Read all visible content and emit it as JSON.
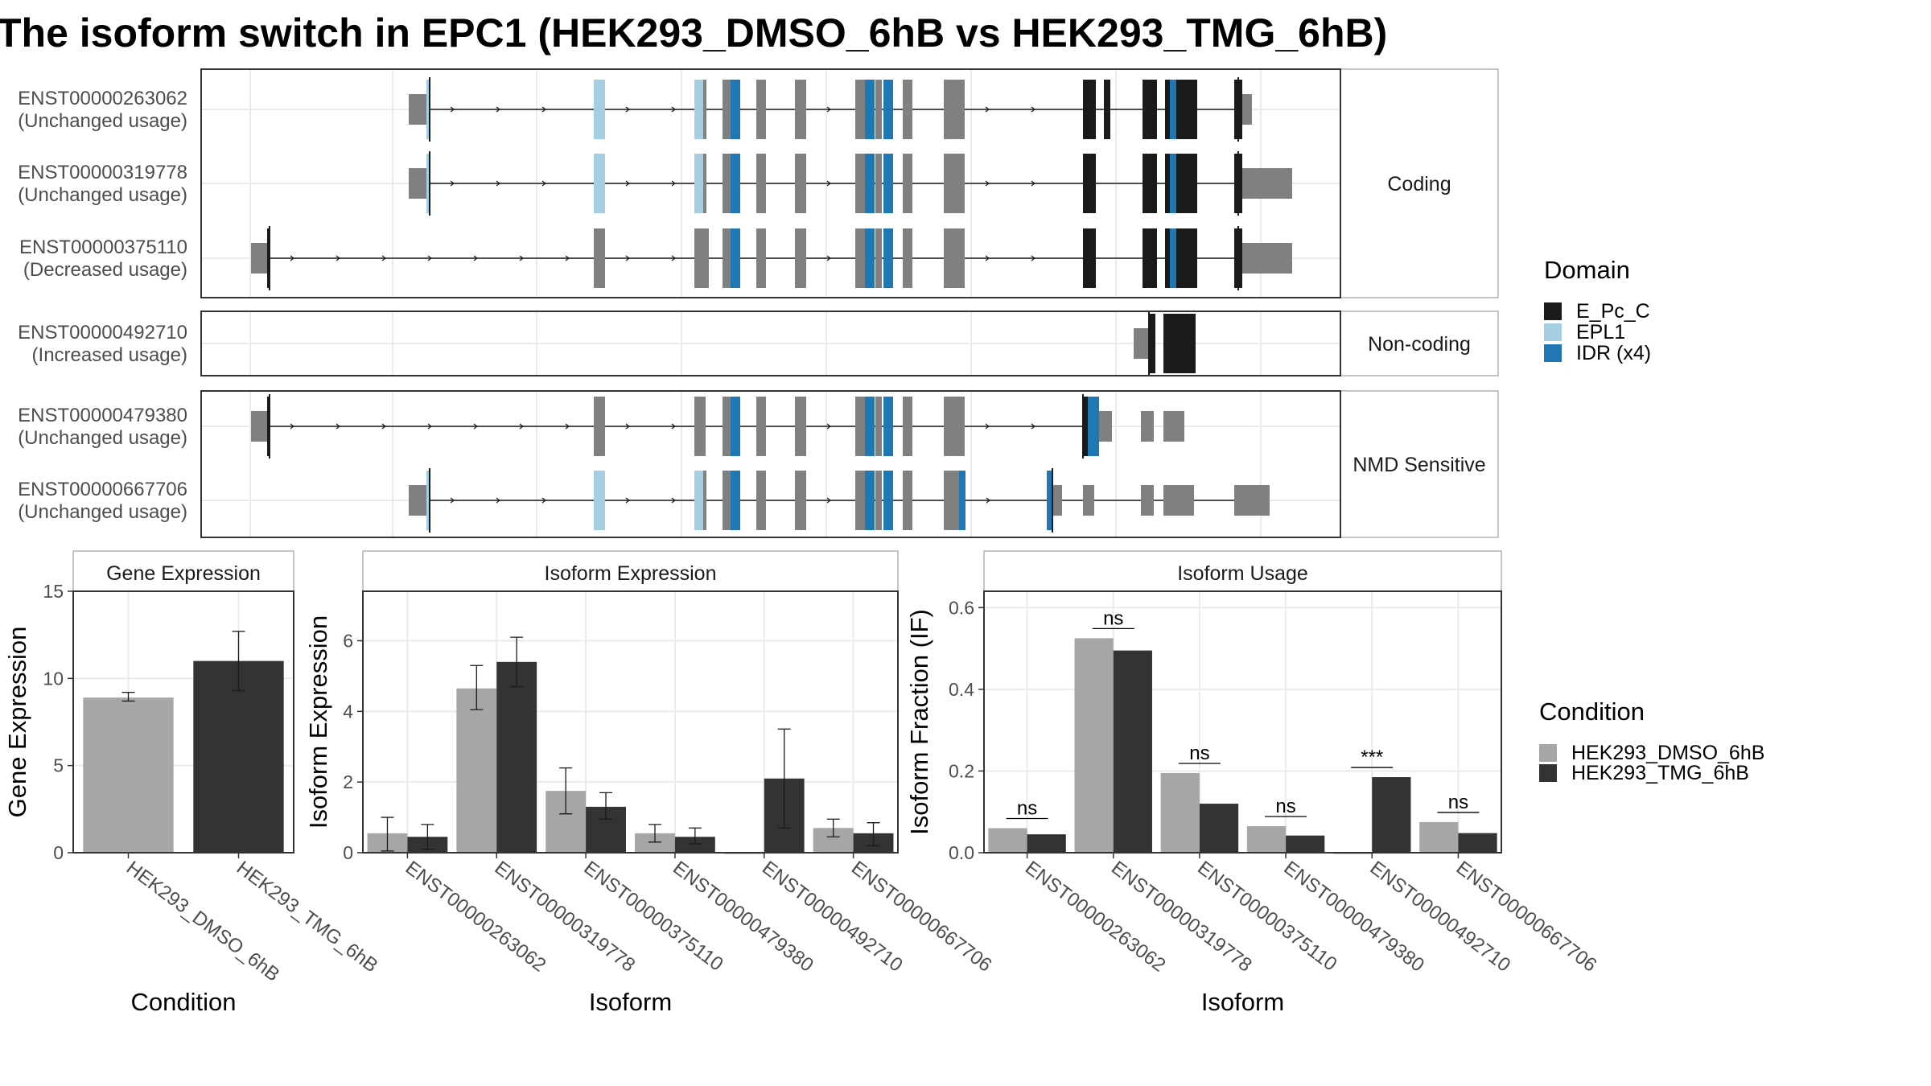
{
  "title": "The isoform switch in EPC1 (HEK293_DMSO_6hB vs HEK293_TMG_6hB)",
  "colors": {
    "exon": "#808080",
    "E_Pc_C": "#1a1a1a",
    "EPL1": "#a6cee3",
    "IDR": "#1f78b4",
    "dmso": "#a6a6a6",
    "tmg": "#333333",
    "grid": "#ebebeb",
    "panel_border": "#333333",
    "strip_border": "#b3b3b3"
  },
  "structure": {
    "groups": [
      {
        "label": "Coding",
        "transcripts": [
          {
            "id": "ENST00000263062",
            "usage": "(Unchanged usage)"
          },
          {
            "id": "ENST00000319778",
            "usage": "(Unchanged usage)"
          },
          {
            "id": "ENST00000375110",
            "usage": "(Decreased usage)"
          }
        ]
      },
      {
        "label": "Non-coding",
        "transcripts": [
          {
            "id": "ENST00000492710",
            "usage": "(Increased usage)"
          }
        ]
      },
      {
        "label": "NMD Sensitive",
        "transcripts": [
          {
            "id": "ENST00000479380",
            "usage": "(Unchanged usage)"
          },
          {
            "id": "ENST00000667706",
            "usage": "(Unchanged usage)"
          }
        ]
      }
    ]
  },
  "legend_domain": {
    "title": "Domain",
    "items": [
      {
        "label": "E_Pc_C",
        "color": "#1a1a1a"
      },
      {
        "label": "EPL1",
        "color": "#a6cee3"
      },
      {
        "label": "IDR (x4)",
        "color": "#1f78b4"
      }
    ]
  },
  "legend_condition": {
    "title": "Condition",
    "items": [
      {
        "label": "HEK293_DMSO_6hB",
        "color": "#a6a6a6"
      },
      {
        "label": "HEK293_TMG_6hB",
        "color": "#333333"
      }
    ]
  },
  "chart_data": [
    {
      "type": "bar",
      "title": "Gene Expression",
      "xlabel": "Condition",
      "ylabel": "Gene Expression",
      "ylim": [
        0,
        15
      ],
      "yticks": [
        0,
        5,
        10,
        15
      ],
      "categories": [
        "HEK293_DMSO_6hB",
        "HEK293_TMG_6hB"
      ],
      "series": [
        {
          "name": "HEK293_DMSO_6hB",
          "values": [
            8.9,
            null
          ],
          "err_low": [
            8.7,
            null
          ],
          "err_high": [
            9.2,
            null
          ]
        },
        {
          "name": "HEK293_TMG_6hB",
          "values": [
            null,
            11.0
          ],
          "err_low": [
            null,
            9.3
          ],
          "err_high": [
            null,
            12.7
          ]
        }
      ]
    },
    {
      "type": "bar",
      "title": "Isoform Expression",
      "xlabel": "Isoform",
      "ylabel": "Isoform Expression",
      "ylim": [
        0,
        7.4
      ],
      "yticks": [
        0,
        2,
        4,
        6
      ],
      "categories": [
        "ENST00000263062",
        "ENST00000319778",
        "ENST00000375110",
        "ENST00000479380",
        "ENST00000492710",
        "ENST00000667706"
      ],
      "series": [
        {
          "name": "HEK293_DMSO_6hB",
          "values": [
            0.55,
            4.65,
            1.75,
            0.55,
            0.0,
            0.7
          ],
          "err_low": [
            0.05,
            4.05,
            1.1,
            0.3,
            0.0,
            0.45
          ],
          "err_high": [
            1.0,
            5.3,
            2.4,
            0.8,
            0.0,
            0.95
          ]
        },
        {
          "name": "HEK293_TMG_6hB",
          "values": [
            0.45,
            5.4,
            1.3,
            0.45,
            2.1,
            0.55
          ],
          "err_low": [
            0.1,
            4.7,
            0.95,
            0.25,
            0.7,
            0.2
          ],
          "err_high": [
            0.8,
            6.1,
            1.7,
            0.7,
            3.5,
            0.85
          ]
        }
      ]
    },
    {
      "type": "bar",
      "title": "Isoform Usage",
      "xlabel": "Isoform",
      "ylabel": "Isoform Fraction (IF)",
      "ylim": [
        0,
        0.64
      ],
      "yticks": [
        0.0,
        0.2,
        0.4,
        0.6
      ],
      "ytick_labels": [
        "0.0",
        "0.2",
        "0.4",
        "0.6"
      ],
      "categories": [
        "ENST00000263062",
        "ENST00000319778",
        "ENST00000375110",
        "ENST00000479380",
        "ENST00000492710",
        "ENST00000667706"
      ],
      "series": [
        {
          "name": "HEK293_DMSO_6hB",
          "values": [
            0.06,
            0.525,
            0.195,
            0.065,
            0.0,
            0.075
          ]
        },
        {
          "name": "HEK293_TMG_6hB",
          "values": [
            0.045,
            0.495,
            0.12,
            0.042,
            0.185,
            0.048
          ]
        }
      ],
      "significance": [
        "ns",
        "ns",
        "ns",
        "ns",
        "***",
        "ns"
      ]
    }
  ]
}
